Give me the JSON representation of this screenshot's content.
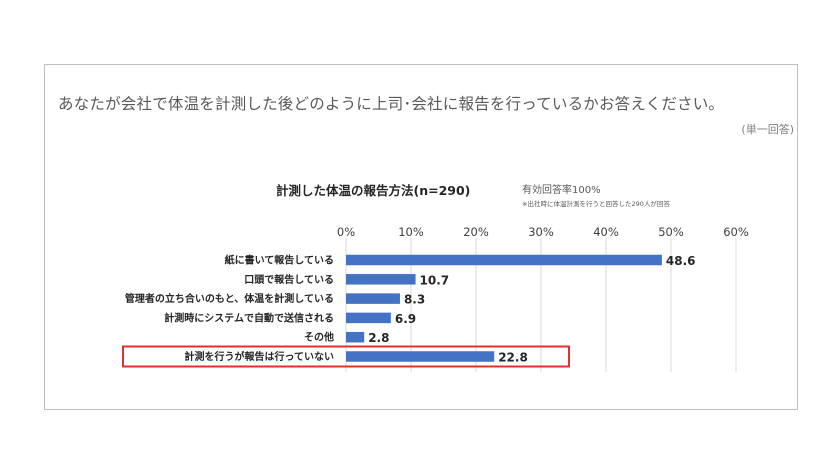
{
  "question": "あなたが会社で体温を計測した後どのように上司･会社に報告を行っているかお答えください。",
  "answer_type": "(単一回答)",
  "respondents": "有効回答率100%",
  "footnote": "※出社時に体温計測を行うと回答した290人が回答",
  "highlight": {
    "category": "計測を行うが報告は行っていない",
    "color": "#e03131"
  },
  "colors": {
    "bar": "#4472c4",
    "grid": "#d9d9d9"
  },
  "chart_data": {
    "type": "bar",
    "orientation": "horizontal",
    "title": "計測した体温の報告方法(n=290)",
    "categories": [
      "紙に書いて報告している",
      "口頭で報告している",
      "管理者の立ち合いのもと、体温を計測している",
      "計測時にシステムで自動で送信される",
      "その他",
      "計測を行うが報告は行っていない"
    ],
    "values": [
      48.6,
      10.7,
      8.3,
      6.9,
      2.8,
      22.8
    ],
    "xlim": [
      0,
      60
    ],
    "xticks": [
      "0%",
      "10%",
      "20%",
      "30%",
      "40%",
      "50%",
      "60%"
    ],
    "grid": true
  }
}
